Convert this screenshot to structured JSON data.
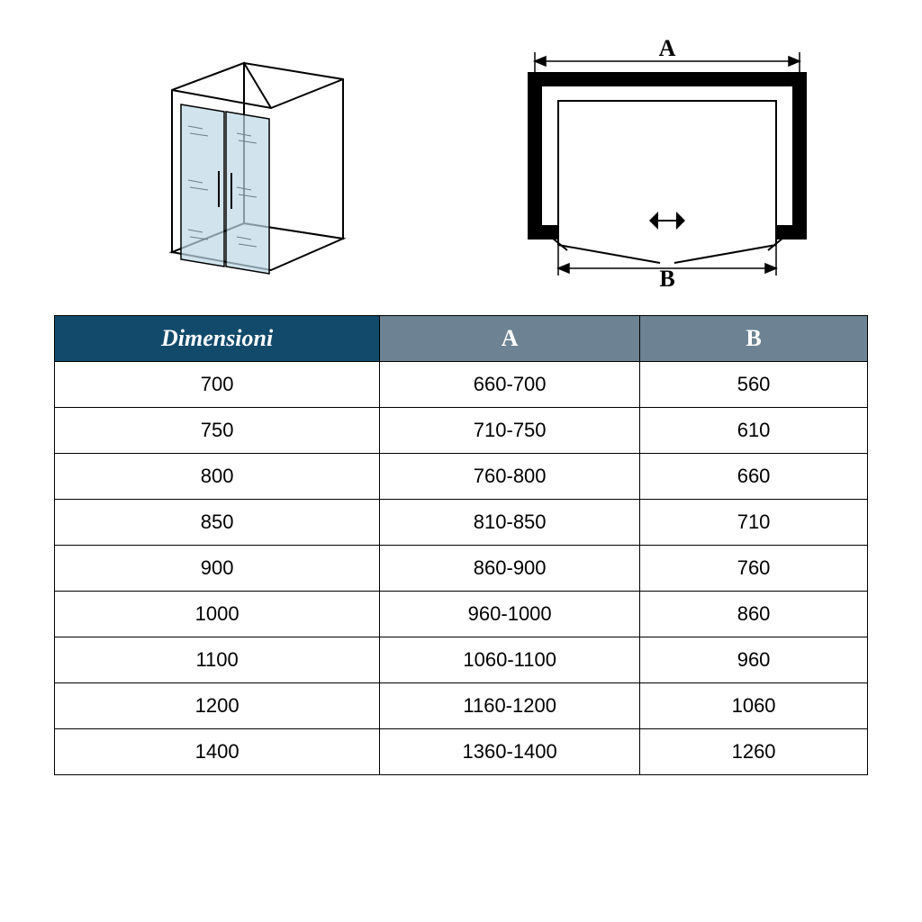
{
  "diagrams": {
    "label_A": "A",
    "label_B": "B",
    "iso": {
      "stroke": "#000000",
      "glass_fill": "#bdd9e6",
      "glass_opacity": 0.7,
      "line_color": "#6d7b86"
    },
    "top": {
      "stroke": "#000000",
      "frame_thickness": 16
    }
  },
  "table": {
    "header_colors": {
      "dim": "#124a6b",
      "a": "#6d8292",
      "b": "#6d8292"
    },
    "border_color": "#000000",
    "columns": [
      "Dimensioni",
      "A",
      "B"
    ],
    "rows": [
      [
        "700",
        "660-700",
        "560"
      ],
      [
        "750",
        "710-750",
        "610"
      ],
      [
        "800",
        "760-800",
        "660"
      ],
      [
        "850",
        "810-850",
        "710"
      ],
      [
        "900",
        "860-900",
        "760"
      ],
      [
        "1000",
        "960-1000",
        "860"
      ],
      [
        "1100",
        "1060-1100",
        "960"
      ],
      [
        "1200",
        "1160-1200",
        "1060"
      ],
      [
        "1400",
        "1360-1400",
        "1260"
      ]
    ]
  }
}
